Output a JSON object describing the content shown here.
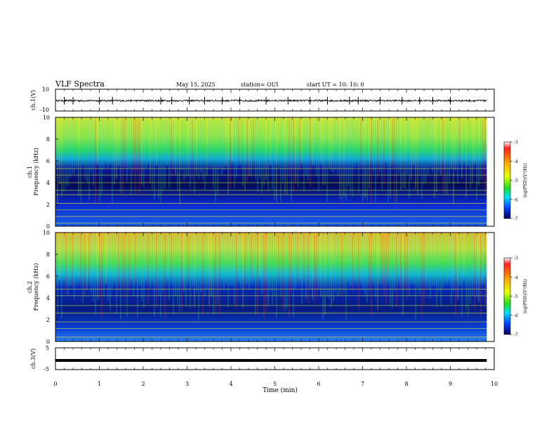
{
  "header": {
    "title": "VLF Spectra",
    "date": "May 15, 2025",
    "station": "station= OUI",
    "start": "start  UT  =   10: 10: 0"
  },
  "chart_data": [
    {
      "type": "line",
      "name": "ch1-waveform",
      "ylabel": "ch.1(V)",
      "ylim": [
        -10,
        10
      ],
      "yticks": [
        "10",
        "-10"
      ],
      "xlim": [
        0,
        10
      ],
      "data_extent_min": 9.83,
      "baseline": -0.5,
      "spikes_min": [
        0.2,
        0.4,
        1.0,
        1.3,
        2.4,
        2.65,
        3.05,
        3.4,
        3.8,
        4.2,
        4.8,
        5.3,
        5.8,
        6.2,
        6.7,
        6.9,
        7.4,
        7.9,
        8.3,
        8.6,
        9.0
      ]
    },
    {
      "type": "heatmap",
      "name": "ch1-spectrogram",
      "ylabel": "ch.1\nFrequency (kHz)",
      "ylim": [
        0,
        10
      ],
      "yticks": [
        "0",
        "2",
        "4",
        "6",
        "8",
        "10"
      ],
      "xlim": [
        0,
        10
      ],
      "data_extent_min": 9.83,
      "colorbar": {
        "label": "log(PSD)(V²/Hz)",
        "range": [
          -7,
          -3
        ],
        "ticks": [
          "-3",
          "-4",
          "-5",
          "-6",
          "-7"
        ]
      },
      "tone_lines_khz": [
        0.3,
        0.9,
        1.5,
        2.1,
        2.9,
        3.3,
        4.0,
        4.7,
        5.3
      ]
    },
    {
      "type": "heatmap",
      "name": "ch2-spectrogram",
      "ylabel": "ch.2\nFrequency (kHz)",
      "ylim": [
        0,
        10
      ],
      "yticks": [
        "0",
        "2",
        "4",
        "6",
        "8",
        "10"
      ],
      "xlim": [
        0,
        10
      ],
      "data_extent_min": 9.83,
      "colorbar": {
        "label": "log(PSD)(V²/Hz)",
        "range": [
          -7,
          -3
        ],
        "ticks": [
          "-3",
          "-4",
          "-5",
          "-6",
          "-7"
        ]
      },
      "tone_lines_khz": [
        0.4,
        1.2,
        1.8,
        2.6,
        3.3,
        4.2,
        4.8
      ]
    },
    {
      "type": "line",
      "name": "ch3-waveform",
      "ylabel": "ch.3(V)",
      "ylim": [
        -5,
        5
      ],
      "yticks": [
        "5",
        "-5"
      ],
      "xlim": [
        0,
        10
      ],
      "data_extent_min": 9.83,
      "baseline": -0.8,
      "xlabel": "Time  (min)",
      "xticks": [
        "0",
        "1",
        "2",
        "3",
        "4",
        "5",
        "6",
        "7",
        "8",
        "9",
        "10"
      ]
    }
  ]
}
